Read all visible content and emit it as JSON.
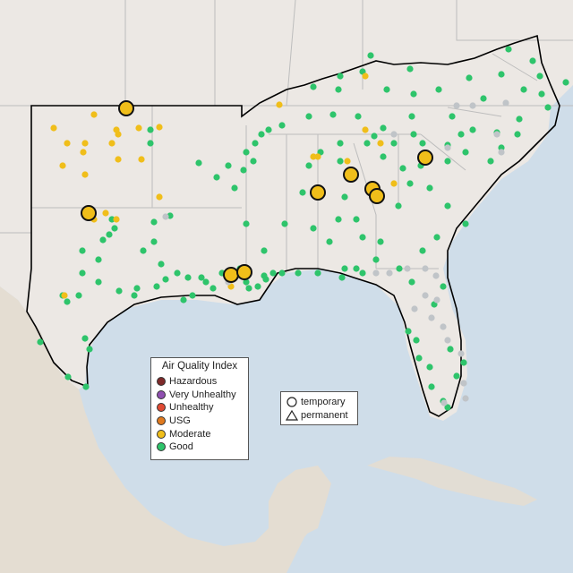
{
  "legend": {
    "title": "Air Quality Index",
    "categories": [
      {
        "label": "Hazardous",
        "color": "#7e2a2a"
      },
      {
        "label": "Very Unhealthy",
        "color": "#8f4fb0"
      },
      {
        "label": "Unhealthy",
        "color": "#e04a33"
      },
      {
        "label": "USG",
        "color": "#e07a1f"
      },
      {
        "label": "Moderate",
        "color": "#f0be1a"
      },
      {
        "label": "Good",
        "color": "#2ec46b"
      }
    ]
  },
  "monitor_types": [
    {
      "label": "temporary",
      "icon": "circle-icon"
    },
    {
      "label": "permanent",
      "icon": "triangle-icon"
    }
  ],
  "colors": {
    "water": "#cfdde9",
    "land": "#ece8e4",
    "good": "#2ec46b",
    "moderate": "#f0be1a",
    "no_data": "#c0c4c8",
    "state_border": "#bdbdbd",
    "region_outline": "#000000"
  }
}
